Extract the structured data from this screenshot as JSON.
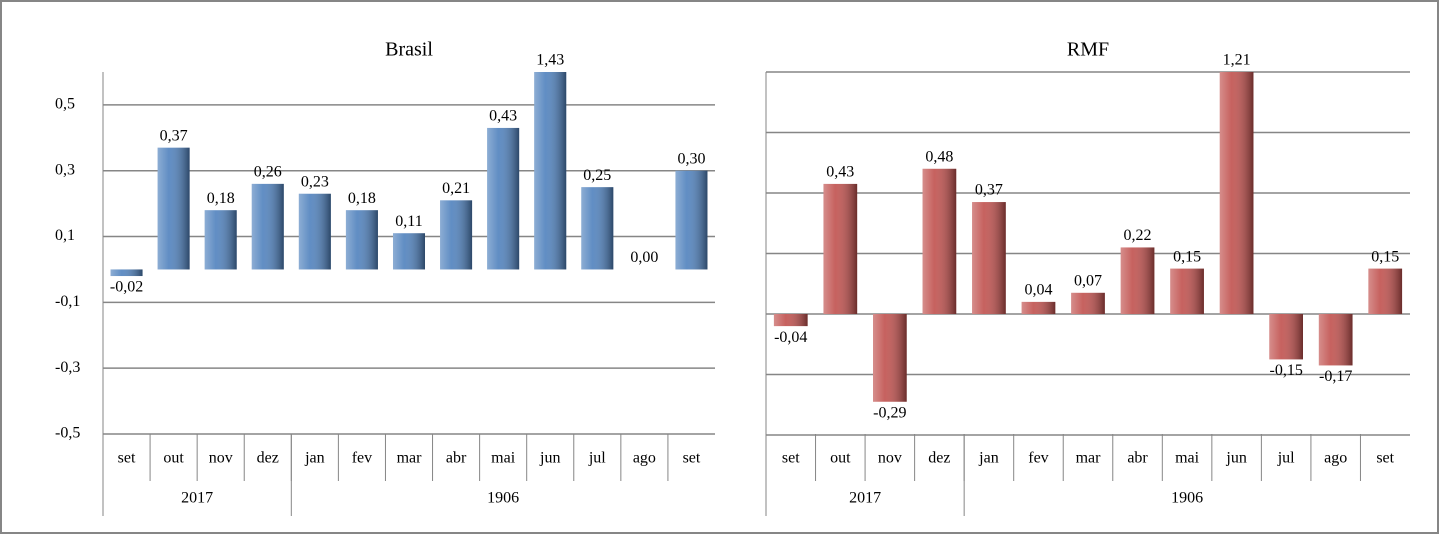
{
  "chart_data": [
    {
      "type": "bar",
      "title": "Brasil",
      "categories": [
        "set",
        "out",
        "nov",
        "dez",
        "jan",
        "fev",
        "mar",
        "abr",
        "mai",
        "jun",
        "jul",
        "ago",
        "set"
      ],
      "groups": [
        {
          "label": "2017",
          "start": 0,
          "end": 3
        },
        {
          "label": "1906",
          "start": 4,
          "end": 12
        }
      ],
      "values": [
        -0.02,
        0.37,
        0.18,
        0.26,
        0.23,
        0.18,
        0.11,
        0.21,
        0.43,
        1.43,
        0.25,
        0.0,
        0.3
      ],
      "value_labels": [
        "-0,02",
        "0,37",
        "0,18",
        "0,26",
        "0,23",
        "0,18",
        "0,11",
        "0,21",
        "0,43",
        "1,43",
        "0,25",
        "0,00",
        "0,30"
      ],
      "color": "#4f81bd",
      "negative_label_color": "#ff0000",
      "ylim": [
        -0.5,
        0.6
      ],
      "yticks": [
        {
          "value": -0.5,
          "label": "-0,5"
        },
        {
          "value": -0.3,
          "label": "-0,3"
        },
        {
          "value": -0.1,
          "label": "-0,1"
        },
        {
          "value": 0.1,
          "label": "0,1"
        },
        {
          "value": 0.3,
          "label": "0,3"
        },
        {
          "value": 0.5,
          "label": "0,5"
        }
      ],
      "grid": true,
      "tick_labels": true
    },
    {
      "type": "bar",
      "title": "RMF",
      "categories": [
        "set",
        "out",
        "nov",
        "dez",
        "jan",
        "fev",
        "mar",
        "abr",
        "mai",
        "jun",
        "jul",
        "ago",
        "set"
      ],
      "groups": [
        {
          "label": "2017",
          "start": 0,
          "end": 3
        },
        {
          "label": "1906",
          "start": 4,
          "end": 12
        }
      ],
      "values": [
        -0.04,
        0.43,
        -0.29,
        0.48,
        0.37,
        0.04,
        0.07,
        0.22,
        0.15,
        1.21,
        -0.15,
        -0.17,
        0.15
      ],
      "value_labels": [
        "-0,04",
        "0,43",
        "-0,29",
        "0,48",
        "0,37",
        "0,04",
        "0,07",
        "0,22",
        "0,15",
        "1,21",
        "-0,15",
        "-0,17",
        "0,15"
      ],
      "color": "#c0504d",
      "negative_label_color": "#ff0000",
      "ylim": [
        -0.4,
        0.8
      ],
      "yticks": [
        -0.4,
        -0.2,
        0,
        0.2,
        0.4,
        0.6,
        0.8
      ],
      "grid": true,
      "tick_labels": false
    }
  ]
}
